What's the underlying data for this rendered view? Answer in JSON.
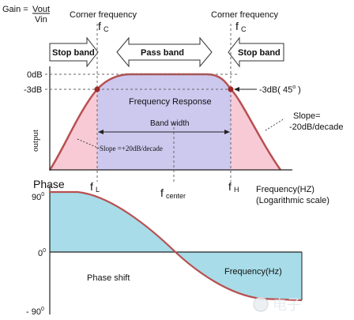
{
  "colors": {
    "passband_fill": "#cdc8ee",
    "stopband_fill": "#f7cad6",
    "response_curve": "#b85050",
    "phase_fill": "#a7dce8",
    "dashed_line": "#666666"
  },
  "gain_formula": {
    "lhs": "Gain =",
    "numerator": "Vout",
    "denominator": "Vin"
  },
  "corner_left": {
    "title": "Corner frequency",
    "symbol": "f",
    "sub": "C"
  },
  "corner_right": {
    "title": "Corner frequency",
    "symbol": "f",
    "sub": "C"
  },
  "bands": {
    "stop_left": "Stop band",
    "pass": "Pass band",
    "stop_right": "Stop band"
  },
  "magnitude": {
    "ylabel": "output",
    "tick_0db": "0dB",
    "tick_3db": "-3dB",
    "cutoff_label": "-3dB( 45",
    "cutoff_degree": "o",
    "cutoff_close": " )",
    "center_label": "Frequency Response",
    "bandwidth_label": "Band width",
    "slope_left": "Slope =+20dB/decade",
    "slope_right_line1": "Slope=",
    "slope_right_line2": "-20dB/decade"
  },
  "frequency_axis": {
    "fl_symbol": "f",
    "fl_sub": "L",
    "fcenter_symbol": "f",
    "fcenter_sub": "center",
    "fh_symbol": "f",
    "fh_sub": "H",
    "label_line1": "Frequency(HZ)",
    "label_line2": "(Logarithmic scale)"
  },
  "phase": {
    "title": "Phase",
    "tick_90": "90",
    "tick_0": "0",
    "tick_m90": "- 90",
    "degree": "0",
    "phase_shift_label": "Phase shift",
    "freq_label": "Frequency(Hz)"
  },
  "watermark": "电子"
}
